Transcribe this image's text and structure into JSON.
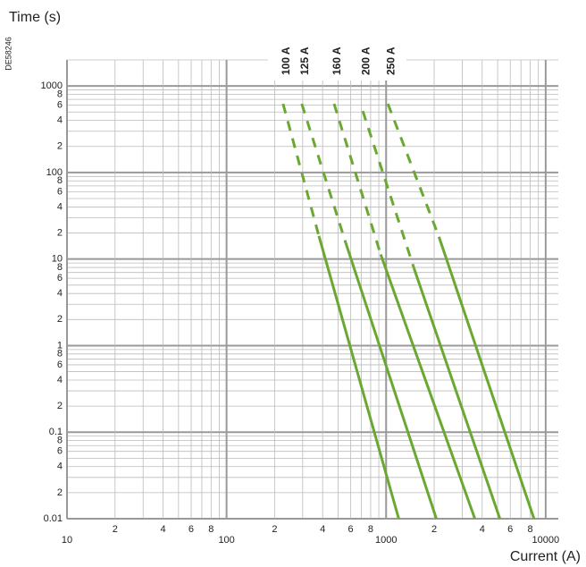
{
  "chart_data": {
    "type": "line",
    "y_label": "Time (s)",
    "x_label": "Current (A)",
    "code": "DE58246",
    "xscale": "log",
    "yscale": "log",
    "grid": true,
    "xlim": [
      10,
      12000
    ],
    "ylim": [
      0.01,
      2000
    ],
    "xticks": [
      10,
      {
        "value": 20,
        "label": "2"
      },
      {
        "value": 40,
        "label": "4"
      },
      {
        "value": 60,
        "label": "6"
      },
      {
        "value": 80,
        "label": "8"
      },
      100,
      {
        "value": 200,
        "label": "2"
      },
      {
        "value": 400,
        "label": "4"
      },
      {
        "value": 600,
        "label": "6"
      },
      {
        "value": 800,
        "label": "8"
      },
      1000,
      {
        "value": 2000,
        "label": "2"
      },
      {
        "value": 4000,
        "label": "4"
      },
      {
        "value": 6000,
        "label": "6"
      },
      {
        "value": 8000,
        "label": "8"
      },
      10000
    ],
    "yticks": [
      0.01,
      {
        "value": 0.02,
        "label": "2"
      },
      {
        "value": 0.04,
        "label": "4"
      },
      {
        "value": 0.06,
        "label": "6"
      },
      {
        "value": 0.08,
        "label": "8"
      },
      0.1,
      {
        "value": 0.2,
        "label": "2"
      },
      {
        "value": 0.4,
        "label": "4"
      },
      {
        "value": 0.6,
        "label": "6"
      },
      {
        "value": 0.8,
        "label": "8"
      },
      1,
      {
        "value": 2,
        "label": "2"
      },
      {
        "value": 4,
        "label": "4"
      },
      {
        "value": 6,
        "label": "6"
      },
      {
        "value": 8,
        "label": "8"
      },
      10,
      {
        "value": 20,
        "label": "2"
      },
      {
        "value": 40,
        "label": "4"
      },
      {
        "value": 60,
        "label": "6"
      },
      {
        "value": 80,
        "label": "8"
      },
      100,
      {
        "value": 200,
        "label": "2"
      },
      {
        "value": 400,
        "label": "4"
      },
      {
        "value": 600,
        "label": "6"
      },
      {
        "value": 800,
        "label": "8"
      },
      1000
    ],
    "segment_styles": [
      "dashed",
      "solid"
    ],
    "series": [
      {
        "name": "100 A",
        "color": "#6aa832",
        "x": [
          226,
          379,
          1200
        ],
        "values": [
          622,
          18.5,
          0.01
        ]
      },
      {
        "name": "125 A",
        "color": "#6aa832",
        "x": [
          296,
          559,
          2065
        ],
        "values": [
          622,
          15.3,
          0.01
        ]
      },
      {
        "name": "160 A",
        "color": "#6aa832",
        "x": [
          472,
          925,
          3600
        ],
        "values": [
          622,
          11.3,
          0.01
        ]
      },
      {
        "name": "200 A",
        "color": "#6aa832",
        "x": [
          714,
          1493,
          5164
        ],
        "values": [
          514,
          7.9,
          0.01
        ]
      },
      {
        "name": "250 A",
        "color": "#6aa832",
        "x": [
          1026,
          2143,
          8450
        ],
        "values": [
          622,
          18.1,
          0.01
        ]
      }
    ]
  }
}
